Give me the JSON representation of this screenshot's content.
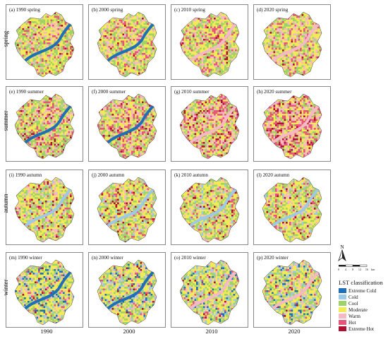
{
  "panels": [
    {
      "label": "(a) 1990 spring",
      "season": "spring",
      "year": "1990"
    },
    {
      "label": "(b) 2000 spring",
      "season": "spring",
      "year": "2000"
    },
    {
      "label": "(c) 2010 spring",
      "season": "spring",
      "year": "2010"
    },
    {
      "label": "(d) 2020 spring",
      "season": "spring",
      "year": "2020"
    },
    {
      "label": "(e) 1990 summer",
      "season": "summer",
      "year": "1990"
    },
    {
      "label": "(f) 2000 summer",
      "season": "summer",
      "year": "2000"
    },
    {
      "label": "(g) 2010 summer",
      "season": "summer",
      "year": "2010"
    },
    {
      "label": "(h) 2020 summer",
      "season": "summer",
      "year": "2020"
    },
    {
      "label": "(i) 1990 autumn",
      "season": "autumn",
      "year": "1990"
    },
    {
      "label": "(j) 2000 autumn",
      "season": "autumn",
      "year": "2000"
    },
    {
      "label": "(k) 2010 autumn",
      "season": "autumn",
      "year": "2010"
    },
    {
      "label": "(l) 2020 autumn",
      "season": "autumn",
      "year": "2020"
    },
    {
      "label": "(m) 1990 winter",
      "season": "winter",
      "year": "1990"
    },
    {
      "label": "(n) 2000 winter",
      "season": "winter",
      "year": "2000"
    },
    {
      "label": "(o) 2010 winter",
      "season": "winter",
      "year": "2010"
    },
    {
      "label": "(p) 2020 winter",
      "season": "winter",
      "year": "2020"
    }
  ],
  "rows": [
    "spring",
    "summer",
    "autumn",
    "winter"
  ],
  "columns": [
    "1990",
    "2000",
    "2010",
    "2020"
  ],
  "legend": {
    "title": "LST classification",
    "items": [
      {
        "label": "Extreme Cold",
        "color": "#1f6fb8"
      },
      {
        "label": "Cold",
        "color": "#9ec9e6"
      },
      {
        "label": "Cool",
        "color": "#9fd36a"
      },
      {
        "label": "Moderate",
        "color": "#f2ea57"
      },
      {
        "label": "Warm",
        "color": "#f4b9c4"
      },
      {
        "label": "Hot",
        "color": "#e6567a"
      },
      {
        "label": "Extreme Hot",
        "color": "#b01030"
      }
    ]
  },
  "north_arrow": "N",
  "scale": {
    "ticks": [
      "0",
      "4",
      "8",
      "12",
      "16"
    ],
    "unit": "km"
  },
  "map_class_shares": {
    "1990 spring": {
      "cool": 0.35,
      "moderate": 0.5,
      "warm": 0.08,
      "hot": 0.07,
      "cold": 0.0,
      "extreme_cold": 0.0,
      "extreme_hot": 0.0
    },
    "2000 spring": {
      "cool": 0.2,
      "moderate": 0.6,
      "warm": 0.1,
      "hot": 0.05,
      "cold": 0.0,
      "extreme_cold": 0.0,
      "extreme_hot": 0.0
    },
    "2010 spring": {
      "cool": 0.25,
      "moderate": 0.4,
      "warm": 0.2,
      "hot": 0.1,
      "cold": 0.0,
      "extreme_cold": 0.0,
      "extreme_hot": 0.0
    },
    "2020 spring": {
      "cool": 0.2,
      "moderate": 0.45,
      "warm": 0.2,
      "hot": 0.1,
      "cold": 0.0,
      "extreme_cold": 0.0,
      "extreme_hot": 0.0
    }
  }
}
